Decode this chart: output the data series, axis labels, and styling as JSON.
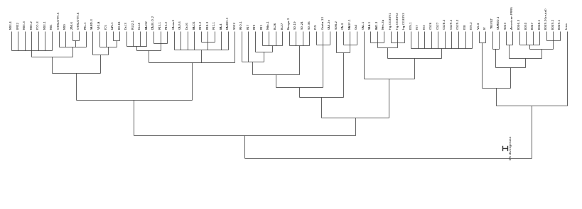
{
  "background_color": "#ffffff",
  "line_color": "#333333",
  "line_width": 0.55,
  "label_fontsize": 3.0,
  "scale_label": "1% divergencia",
  "figsize": [
    8.2,
    2.95
  ],
  "dpi": 100,
  "leaves": [
    "M33-4",
    "LM32",
    "M33-3",
    "M33-2",
    "FCO-3",
    "M33-1",
    "M31",
    "GHISLOTTI-5",
    "M30",
    "ZINI-6",
    "GHISLOTTI-6",
    "PRL-1",
    "SAND-3",
    "V30-A",
    "FC5",
    "LAV-1",
    "BO-61",
    "Dal-3",
    "PLU2-1",
    "Dal-4",
    "BA-D2",
    "DALB-O-2",
    "R43-1",
    "R43-2",
    "CAcav1",
    "CAU-6",
    "Dal-6",
    "BA-D1",
    "R29-2",
    "R28-3",
    "R31-1",
    "BA-4",
    "DALBO-1",
    "SO22",
    "REO-1",
    "R27",
    "R29",
    "R21",
    "Mdo-1",
    "BL26",
    "BL27",
    "Bonga-3",
    "SO-19",
    "SO-24",
    "SO-36",
    "F19",
    "Gaeta-13",
    "CAS-2e",
    "SON-2",
    "GA-4",
    "MAUF-1",
    "Oa3",
    "GAL-1",
    "SBA-1",
    "PAD-3",
    "Men-3a",
    "Ing-CG30V1",
    "Ing-CG30V2",
    "Ing-CG30V3",
    "F29-1",
    "F37",
    "F23",
    "CG26",
    "CG27",
    "CG28-2",
    "CG29-1",
    "CG29-2",
    "F28",
    "F29-2",
    "VG-4",
    "LV",
    "TREVILT",
    "CAMDD-1",
    "SO23",
    "American PRRS",
    "BO46-3",
    "BO50",
    "BO47",
    "BO48-1",
    "BO49-2(brutal)",
    "BO49-2",
    "BO49-1",
    "Lena"
  ]
}
